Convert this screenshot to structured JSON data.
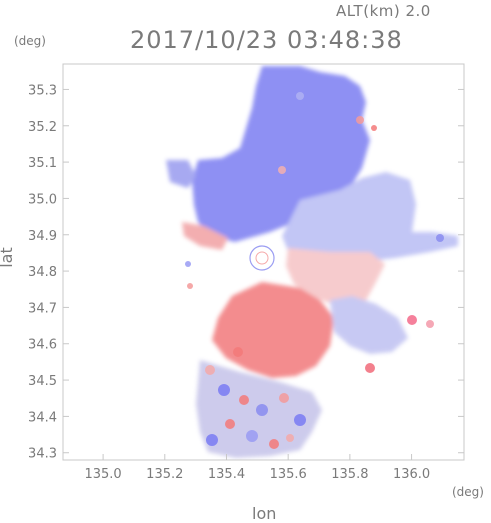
{
  "header": {
    "altitude_label": "ALT(km) 2.0",
    "timestamp": "2017/10/23 03:48:38"
  },
  "axes": {
    "lat_unit": "(deg)",
    "lon_unit": "(deg)",
    "xlabel": "lon",
    "ylabel": "lat",
    "x_ticks": [
      "135.0",
      "135.2",
      "135.4",
      "135.6",
      "135.8",
      "136.0"
    ],
    "y_ticks": [
      "35.3",
      "35.2",
      "35.1",
      "35.0",
      "34.9",
      "34.8",
      "34.7",
      "34.6",
      "34.5",
      "34.4",
      "34.3"
    ],
    "xlim": [
      134.87,
      136.17
    ],
    "ylim": [
      34.28,
      35.37
    ]
  },
  "colors": {
    "frame": "#c8c8c8",
    "text": "#7a7a7a",
    "approaching_blue": "#7a7cf4",
    "receding_red": "#f47a7a",
    "neutral": "#e0e0f6"
  }
}
